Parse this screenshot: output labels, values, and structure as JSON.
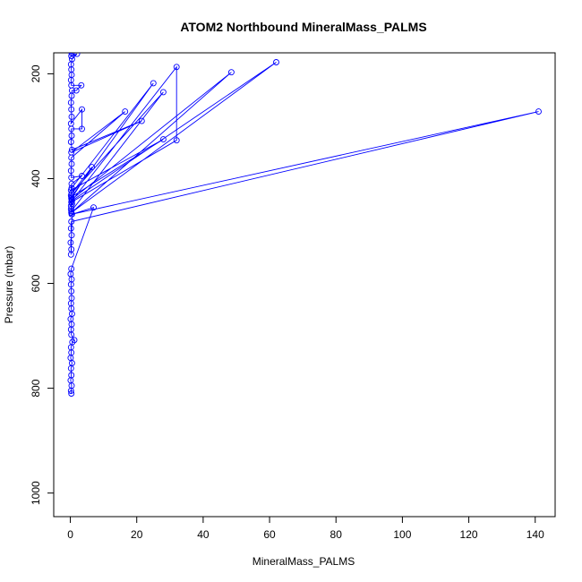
{
  "chart_data": {
    "type": "line",
    "title": "ATOM2 Northbound MineralMass_PALMS",
    "xlabel": "MineralMass_PALMS",
    "ylabel": "Pressure (mbar)",
    "xlim": [
      -5,
      146
    ],
    "ylim": [
      1045,
      160
    ],
    "y_inverted": true,
    "x_ticks": [
      0,
      20,
      40,
      60,
      80,
      100,
      120,
      140
    ],
    "y_ticks": [
      200,
      400,
      600,
      800,
      1000
    ],
    "grid": false,
    "legend": "none",
    "series_color": "#0000ff",
    "series": [
      {
        "values_xy": [
          [
            0.3,
            810
          ],
          [
            0.2,
            805
          ],
          [
            0.4,
            795
          ],
          [
            0.1,
            785
          ],
          [
            0.3,
            775
          ],
          [
            0.2,
            762
          ],
          [
            0.5,
            752
          ],
          [
            0.1,
            742
          ],
          [
            0.3,
            732
          ],
          [
            0.2,
            722
          ],
          [
            0.6,
            712
          ],
          [
            1.2,
            708
          ],
          [
            0.3,
            698
          ],
          [
            0.2,
            688
          ],
          [
            0.4,
            678
          ],
          [
            0.1,
            668
          ],
          [
            0.5,
            658
          ],
          [
            0.3,
            648
          ],
          [
            0.2,
            638
          ],
          [
            0.4,
            628
          ],
          [
            0.3,
            615
          ],
          [
            0.2,
            602
          ],
          [
            0.4,
            592
          ],
          [
            0.1,
            582
          ],
          [
            0.3,
            572
          ],
          [
            7.0,
            455
          ],
          [
            0.5,
            468
          ],
          [
            0.2,
            545
          ],
          [
            0.3,
            535
          ],
          [
            0.1,
            522
          ],
          [
            0.4,
            508
          ],
          [
            0.2,
            495
          ],
          [
            0.3,
            482
          ],
          [
            141.0,
            272
          ],
          [
            0.4,
            468
          ],
          [
            0.2,
            458
          ],
          [
            0.5,
            448
          ],
          [
            0.3,
            438
          ],
          [
            6.5,
            378
          ],
          [
            0.4,
            428
          ],
          [
            28.0,
            235
          ],
          [
            0.3,
            462
          ],
          [
            0.2,
            452
          ],
          [
            0.4,
            440
          ],
          [
            48.5,
            197
          ],
          [
            0.3,
            465
          ],
          [
            62.0,
            178
          ],
          [
            0.5,
            442
          ],
          [
            32.0,
            187
          ],
          [
            32.0,
            327
          ],
          [
            0.3,
            445
          ],
          [
            0.2,
            432
          ],
          [
            0.4,
            418
          ],
          [
            25.0,
            218
          ],
          [
            0.3,
            435
          ],
          [
            28.0,
            325
          ],
          [
            0.2,
            422
          ],
          [
            0.4,
            410
          ],
          [
            3.5,
            395
          ],
          [
            0.3,
            398
          ],
          [
            0.2,
            385
          ],
          [
            0.4,
            372
          ],
          [
            0.3,
            360
          ],
          [
            16.5,
            272
          ],
          [
            0.3,
            350
          ],
          [
            21.5,
            290
          ],
          [
            0.5,
            345
          ],
          [
            0.2,
            330
          ],
          [
            0.4,
            318
          ],
          [
            0.3,
            305
          ],
          [
            3.5,
            305
          ],
          [
            3.5,
            268
          ],
          [
            0.2,
            295
          ],
          [
            0.4,
            282
          ],
          [
            0.3,
            268
          ],
          [
            0.2,
            255
          ],
          [
            0.4,
            242
          ],
          [
            0.5,
            232
          ],
          [
            1.8,
            232
          ],
          [
            3.3,
            222
          ],
          [
            0.3,
            222
          ],
          [
            0.2,
            212
          ],
          [
            0.4,
            202
          ],
          [
            0.3,
            192
          ],
          [
            0.2,
            182
          ],
          [
            0.5,
            172
          ],
          [
            2.0,
            162
          ],
          [
            0.3,
            166
          ],
          [
            0.4,
            160
          ]
        ]
      }
    ]
  }
}
